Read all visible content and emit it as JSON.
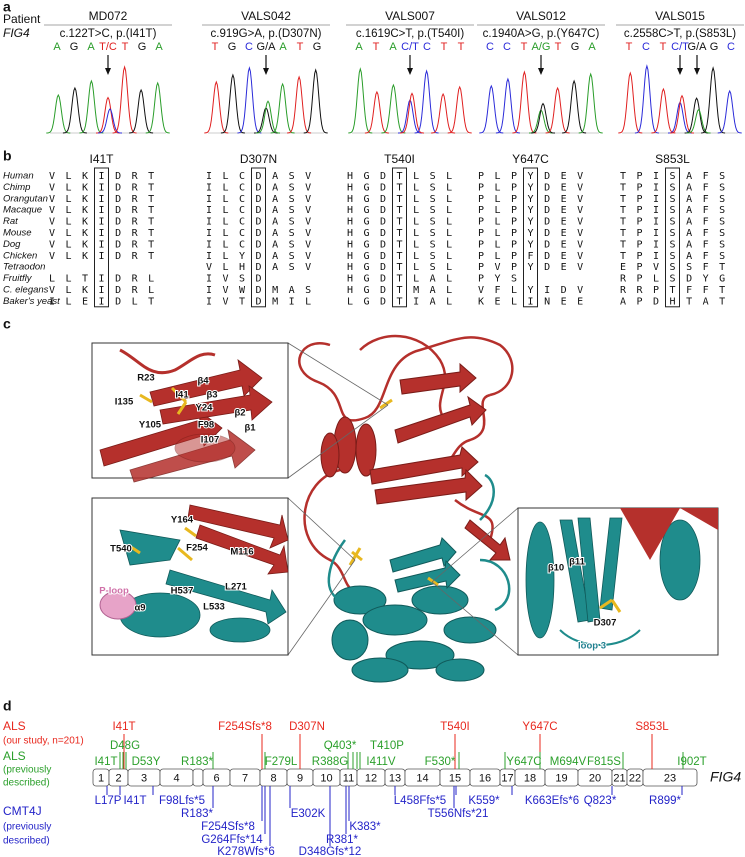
{
  "panel_a": {
    "label": "a",
    "patient_label": "Patient",
    "gene_label": "FIG4",
    "base_colors": {
      "A": "#2a9d2a",
      "C": "#2b2bd9",
      "G": "#111111",
      "T": "#e02020"
    },
    "patients": [
      {
        "id": "MD072",
        "mutation": "c.122T>C, p.(I41T)",
        "bases": [
          "A",
          "G",
          "A",
          "T/C",
          "T",
          "G",
          "A"
        ]
      },
      {
        "id": "VALS042",
        "mutation": "c.919G>A, p.(D307N)",
        "bases": [
          "T",
          "G",
          "C",
          "G/A",
          "A",
          "T",
          "G"
        ]
      },
      {
        "id": "VALS007",
        "mutation": "c.1619C>T, p.(T540I)",
        "bases": [
          "A",
          "T",
          "A",
          "C/T",
          "C",
          "T",
          "T"
        ]
      },
      {
        "id": "VALS012",
        "mutation": "c.1940A>G, p.(Y647C)",
        "bases": [
          "C",
          "C",
          "T",
          "A/G",
          "T",
          "G",
          "A"
        ]
      },
      {
        "id": "VALS015",
        "mutation": "c.2558C>T, p.(S853L)",
        "bases": [
          "T",
          "C",
          "T",
          "C/T",
          "G/A",
          "G",
          "C"
        ]
      }
    ]
  },
  "panel_b": {
    "label": "b",
    "species": [
      "Human",
      "Chimp",
      "Orangutan",
      "Macaque",
      "Rat",
      "Mouse",
      "Dog",
      "Chicken",
      "Tetraodon",
      "Fruitfly",
      "C. elegans",
      "Baker's yeast"
    ],
    "alignments": [
      {
        "mutation": "I41T",
        "rows": [
          "VLKIDRT",
          "VLKIDRT",
          "VLKIDRT",
          "VLKIDRT",
          "VLKIDRT",
          "VLKIDRT",
          "VLKIDRT",
          "VLKIDRT",
          null,
          "LLTIDRL",
          "VLKIDRL",
          "ILEIDLT"
        ]
      },
      {
        "mutation": "D307N",
        "rows": [
          "ILCDASV",
          "ILCDASV",
          "ILCDASV",
          "ILCDASV",
          "ILCDASV",
          "ILCDASV",
          "ILCDASV",
          "ILYDASV",
          "VLHDASV",
          "IVSD",
          "IVWDMAS",
          "IVTDMIL"
        ]
      },
      {
        "mutation": "T540I",
        "rows": [
          "HGDTLSL",
          "HGDTLSL",
          "HGDTLSL",
          "HGDTLSL",
          "HGDTLSL",
          "HGDTLSL",
          "HGDTLSL",
          "HGDTLSL",
          "HGDTLSL",
          "HGDTLAL",
          "HGDTMAL",
          "LGDTIAL"
        ]
      },
      {
        "mutation": "Y647C",
        "rows": [
          "PLPYDEV",
          "PLPYDEV",
          "PLPYDEV",
          "PLPYDEV",
          "PLPYDEV",
          "PLPYDEV",
          "PLPYDEV",
          "PLPFDEV",
          "PVPYDEV",
          "PYS",
          "VFLYIDV",
          "KELINEE"
        ]
      },
      {
        "mutation": "S853L",
        "rows": [
          "TPISAFS",
          "TPISAFS",
          "TPISAFS",
          "TPISAFS",
          "TPISAFS",
          "TPISAFS",
          "TPISAFS",
          "TPISAFS",
          "EPVSSFT",
          "RPLSDYG",
          "RRPTFFT",
          "APDHTAT"
        ]
      }
    ]
  },
  "panel_c": {
    "label": "c",
    "insets": [
      {
        "labels": [
          "R23",
          "β4",
          "β3",
          "I41",
          "I135",
          "Y24",
          "β2",
          "β1",
          "Y105",
          "F98",
          "I107"
        ]
      },
      {
        "labels": [
          "Y164",
          "T540",
          "F254",
          "M116",
          "P-loop",
          "L271",
          "H537",
          "L533",
          "α9"
        ]
      },
      {
        "labels": [
          "β10",
          "β11",
          "D307",
          "loop 3"
        ]
      }
    ]
  },
  "panel_d": {
    "label": "d",
    "gene_label": "FIG4",
    "exons": [
      1,
      2,
      3,
      4,
      6,
      7,
      8,
      9,
      10,
      11,
      12,
      13,
      14,
      15,
      16,
      17,
      18,
      19,
      20,
      21,
      22,
      23
    ],
    "groups": [
      {
        "name": "ALS",
        "note": [
          "(our study, n=201)"
        ],
        "color": "#e8281e",
        "mutations": [
          "I41T",
          "F254Sfs*8",
          "D307N",
          "T540I",
          "Y647C",
          "S853L"
        ]
      },
      {
        "name": "ALS",
        "note": [
          "(previously",
          "described)"
        ],
        "color": "#2ca02c",
        "mutations": [
          "I41T",
          "D48G",
          "D53Y",
          "R183*",
          "F279L",
          "R388G",
          "Q403*",
          "T410P",
          "I411V",
          "F530*",
          "Y647C",
          "M694V",
          "F815S",
          "I902T"
        ]
      },
      {
        "name": "CMT4J",
        "note": [
          "(previously",
          "described)"
        ],
        "color": "#2323c8",
        "mutations": [
          "L17P",
          "I41T",
          "F98Lfs*5",
          "R183*",
          "F254Sfs*8",
          "G264Ffs*14",
          "K278Wfs*6",
          "E302K",
          "R381*",
          "D348Gfs*12",
          "K383*",
          "L458Ffs*5",
          "K559*",
          "T556Nfs*21",
          "K663Efs*6",
          "Q823*",
          "R899*"
        ]
      }
    ]
  }
}
